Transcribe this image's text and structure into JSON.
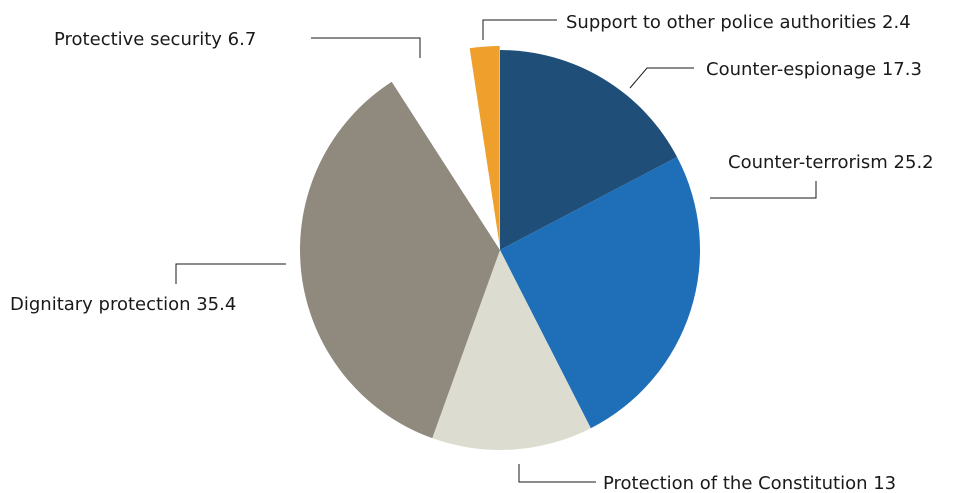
{
  "chart_data": {
    "type": "pie",
    "title": "",
    "start": "12 o'clock",
    "direction": "clockwise",
    "slices": [
      {
        "label": "Counter-espionage",
        "value": 17.3,
        "display": "Counter-espionage 17.3",
        "color": "#1f4e79",
        "exploded": false
      },
      {
        "label": "Counter-terrorism",
        "value": 25.2,
        "display": "Counter-terrorism 25.2",
        "color": "#1f6fb8",
        "exploded": false
      },
      {
        "label": "Protection of the Constitution",
        "value": 13,
        "display": "Protection of the Constitution 13",
        "color": "#dcdcd0",
        "exploded": false
      },
      {
        "label": "Dignitary protection",
        "value": 35.4,
        "display": "Dignitary protection 35.4",
        "color": "#8f897e",
        "exploded": false
      },
      {
        "label": "Protective security",
        "value": 6.7,
        "display": "Protective security 6.7",
        "color": "#ffffff",
        "exploded": false
      },
      {
        "label": "Support to other police authorities",
        "value": 2.4,
        "display": "Support to other police authorities 2.4",
        "color": "#ef9f2b",
        "exploded": true
      }
    ]
  }
}
